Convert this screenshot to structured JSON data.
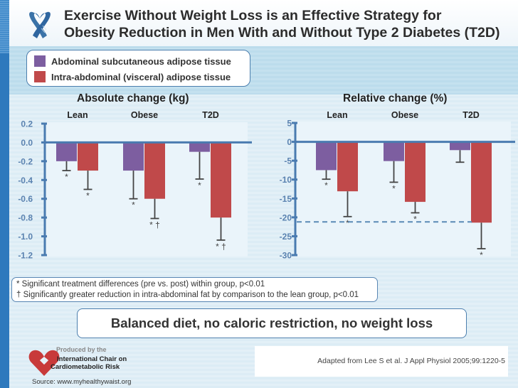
{
  "header": {
    "title_line1": "Exercise Without Weight Loss is an Effective Strategy for",
    "title_line2": "Obesity Reduction in Men With and Without Type 2 Diabetes (T2D)",
    "icon": "ribbon-heart-icon"
  },
  "legend": {
    "items": [
      {
        "label": "Abdominal subcutaneous adipose tissue",
        "color": "#7d5ea0"
      },
      {
        "label": "Intra-abdominal (visceral) adipose tissue",
        "color": "#c0494a"
      }
    ]
  },
  "colors": {
    "subcutaneous": "#7d5ea0",
    "visceral": "#c0494a",
    "axis": "#4a7bb0",
    "axis_label": "#5a82b0",
    "error_bar": "#444444",
    "dashed": "#5a8ab5"
  },
  "chart_data": [
    {
      "type": "bar",
      "title": "Absolute change (kg)",
      "categories": [
        "Lean",
        "Obese",
        "T2D"
      ],
      "xlabel": "",
      "ylabel": "",
      "ylim": [
        -1.2,
        0.2
      ],
      "yticks": [
        "0.2",
        "0.0",
        "-0.2",
        "-0.4",
        "-0.6",
        "-0.8",
        "-1.0",
        "-1.2"
      ],
      "ytick_values": [
        0.2,
        0.0,
        -0.2,
        -0.4,
        -0.6,
        -0.8,
        -1.0,
        -1.2
      ],
      "grid": false,
      "series": [
        {
          "name": "Abdominal subcutaneous adipose tissue",
          "values": [
            -0.2,
            -0.3,
            -0.1
          ],
          "error_low": [
            -0.3,
            -0.6,
            -0.39
          ],
          "annotations": [
            "*",
            "*",
            "*"
          ]
        },
        {
          "name": "Intra-abdominal (visceral) adipose tissue",
          "values": [
            -0.3,
            -0.6,
            -0.8
          ],
          "error_low": [
            -0.5,
            -0.81,
            -1.04
          ],
          "annotations": [
            "*",
            "* †",
            "* †"
          ]
        }
      ]
    },
    {
      "type": "bar",
      "title": "Relative change (%)",
      "categories": [
        "Lean",
        "Obese",
        "T2D"
      ],
      "xlabel": "",
      "ylabel": "",
      "ylim": [
        -30,
        5
      ],
      "yticks": [
        "5",
        "0",
        "-5",
        "-10",
        "-15",
        "-20",
        "-25",
        "-30"
      ],
      "ytick_values": [
        5,
        0,
        -5,
        -10,
        -15,
        -20,
        -25,
        -30
      ],
      "grid": false,
      "reference_line": {
        "value": -21.2,
        "style": "dashed"
      },
      "series": [
        {
          "name": "Abdominal subcutaneous adipose tissue",
          "values": [
            -7.5,
            -5.1,
            -2.2
          ],
          "error_low": [
            -9.9,
            -10.7,
            -5.4
          ],
          "annotations": [
            "*",
            "*",
            ""
          ]
        },
        {
          "name": "Intra-abdominal (visceral) adipose tissue",
          "values": [
            -13.1,
            -15.9,
            -21.4
          ],
          "error_low": [
            -19.8,
            -18.8,
            -28.3
          ],
          "annotations": [
            "*",
            "*",
            "*"
          ]
        }
      ]
    }
  ],
  "footnotes": {
    "line1": "* Significant treatment differences (pre vs. post) within group, p<0.01",
    "line2": "† Significantly greater reduction in intra-abdominal fat by comparison to the lean group, p<0.01"
  },
  "banner": "Balanced diet, no caloric restriction, no weight loss",
  "citation": "Adapted from Lee S et al. J Appl Physiol 2005;99:1220-5",
  "producer": {
    "produced_by": "Produced by the",
    "org_line1": "International Chair on",
    "org_line2": "Cardiometabolic Risk",
    "logo": "heart-logo-icon"
  },
  "source": "Source: www.myhealthywaist.org"
}
